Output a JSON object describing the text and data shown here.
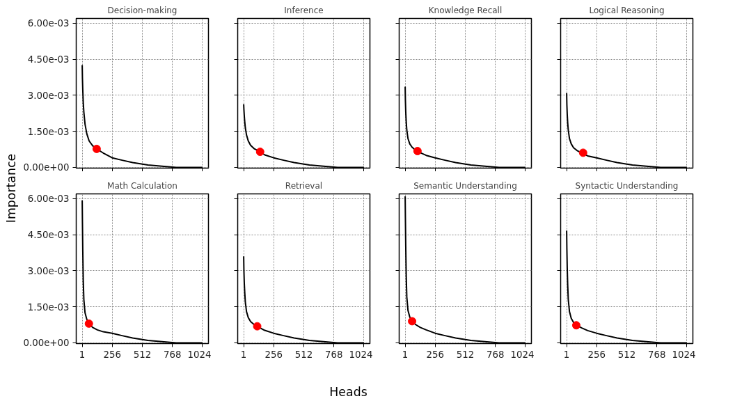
{
  "chart_data": [
    {
      "type": "line",
      "title": "Decision-making",
      "tick_labels": "y",
      "grid": true,
      "xlim": [
        -50,
        1075
      ],
      "ylim": [
        -3e-05,
        0.0062
      ],
      "xticks": [
        1,
        256,
        512,
        768,
        1024
      ],
      "yticks": [
        {
          "value": 0,
          "label": "0.00e+00"
        },
        {
          "value": 0.0015,
          "label": "1.50e-03"
        },
        {
          "value": 0.003,
          "label": "3.00e-03"
        },
        {
          "value": 0.0045,
          "label": "4.50e-03"
        },
        {
          "value": 0.006,
          "label": "6.00e-03"
        }
      ],
      "series": [
        {
          "color": "#000000",
          "x": [
            1,
            3,
            6,
            10,
            15,
            25,
            40,
            60,
            90,
            130,
            180,
            256,
            340,
            430,
            560,
            800,
            1024
          ],
          "values": [
            0.00426,
            0.0037,
            0.0032,
            0.0027,
            0.0023,
            0.0018,
            0.0014,
            0.0011,
            0.0009,
            0.00075,
            0.0006,
            0.0004,
            0.0003,
            0.0002,
            0.0001,
            0.0,
            0.0
          ]
        },
        {
          "type": "scatter",
          "color": "#ff0000",
          "x": [
            124
          ],
          "values": [
            0.00077
          ]
        }
      ]
    },
    {
      "type": "line",
      "title": "Inference",
      "tick_labels": false,
      "grid": true,
      "xlim": [
        -50,
        1075
      ],
      "ylim": [
        -3e-05,
        0.0062
      ],
      "xticks": [
        1,
        256,
        512,
        768,
        1024
      ],
      "yticks": [
        0,
        0.0015,
        0.003,
        0.0045,
        0.006
      ],
      "series": [
        {
          "color": "#000000",
          "x": [
            1,
            3,
            6,
            10,
            15,
            25,
            40,
            60,
            90,
            130,
            180,
            256,
            340,
            430,
            560,
            800,
            1024
          ],
          "values": [
            0.00263,
            0.0024,
            0.00215,
            0.0019,
            0.00165,
            0.00135,
            0.0011,
            0.00092,
            0.00078,
            0.00068,
            0.00052,
            0.0004,
            0.0003,
            0.0002,
            0.0001,
            0.0,
            0.0
          ]
        },
        {
          "type": "scatter",
          "color": "#ff0000",
          "x": [
            141
          ],
          "values": [
            0.00065
          ]
        }
      ]
    },
    {
      "type": "line",
      "title": "Knowledge Recall",
      "tick_labels": false,
      "grid": true,
      "xlim": [
        -50,
        1075
      ],
      "ylim": [
        -3e-05,
        0.0062
      ],
      "xticks": [
        1,
        256,
        512,
        768,
        1024
      ],
      "yticks": [
        0,
        0.0015,
        0.003,
        0.0045,
        0.006
      ],
      "series": [
        {
          "color": "#000000",
          "x": [
            1,
            3,
            6,
            10,
            15,
            25,
            40,
            60,
            90,
            130,
            180,
            256,
            340,
            430,
            560,
            800,
            1024
          ],
          "values": [
            0.00336,
            0.0028,
            0.0023,
            0.0019,
            0.00155,
            0.0012,
            0.00098,
            0.00084,
            0.00072,
            0.00061,
            0.0005,
            0.0004,
            0.0003,
            0.0002,
            0.0001,
            0.0,
            0.0
          ]
        },
        {
          "type": "scatter",
          "color": "#ff0000",
          "x": [
            106
          ],
          "values": [
            0.00068
          ]
        }
      ]
    },
    {
      "type": "line",
      "title": "Logical Reasoning",
      "tick_labels": false,
      "grid": true,
      "xlim": [
        -50,
        1075
      ],
      "ylim": [
        -3e-05,
        0.0062
      ],
      "xticks": [
        1,
        256,
        512,
        768,
        1024
      ],
      "yticks": [
        0,
        0.0015,
        0.003,
        0.0045,
        0.006
      ],
      "series": [
        {
          "color": "#000000",
          "x": [
            1,
            3,
            6,
            10,
            15,
            25,
            40,
            60,
            90,
            180,
            256,
            340,
            430,
            560,
            800,
            1024
          ],
          "values": [
            0.00309,
            0.0026,
            0.0022,
            0.00185,
            0.00155,
            0.0012,
            0.00098,
            0.00082,
            0.0007,
            0.00048,
            0.0004,
            0.0003,
            0.0002,
            0.0001,
            0.0,
            0.0
          ]
        },
        {
          "type": "scatter",
          "color": "#ff0000",
          "x": [
            141
          ],
          "values": [
            0.00061
          ]
        }
      ]
    },
    {
      "type": "line",
      "title": "Math Calculation",
      "ylabel": "Importance",
      "grid": true,
      "xlim": [
        -50,
        1075
      ],
      "ylim": [
        -3e-05,
        0.0062
      ],
      "xticks": [
        1,
        256,
        512,
        768,
        1024
      ],
      "yticks": [
        {
          "value": 0,
          "label": "0.00e+00"
        },
        {
          "value": 0.0015,
          "label": "1.50e-03"
        },
        {
          "value": 0.003,
          "label": "3.00e-03"
        },
        {
          "value": 0.0045,
          "label": "4.50e-03"
        },
        {
          "value": 0.006,
          "label": "6.00e-03"
        }
      ],
      "series": [
        {
          "color": "#000000",
          "x": [
            1,
            3,
            6,
            10,
            15,
            25,
            40,
            60,
            90,
            130,
            180,
            256,
            340,
            430,
            560,
            800,
            1024
          ],
          "values": [
            0.00593,
            0.005,
            0.0038,
            0.0026,
            0.0018,
            0.00125,
            0.00098,
            0.00078,
            0.00064,
            0.00054,
            0.00046,
            0.0004,
            0.0003,
            0.0002,
            0.0001,
            0.0,
            0.0
          ]
        },
        {
          "type": "scatter",
          "color": "#ff0000",
          "x": [
            58
          ],
          "values": [
            0.0008
          ]
        }
      ]
    },
    {
      "type": "line",
      "title": "Retrieval",
      "xlabel": "Heads",
      "tick_labels": "x",
      "grid": true,
      "xlim": [
        -50,
        1075
      ],
      "ylim": [
        -3e-05,
        0.0062
      ],
      "xticks": [
        1,
        256,
        512,
        768,
        1024
      ],
      "yticks": [
        0,
        0.0015,
        0.003,
        0.0045,
        0.006
      ],
      "series": [
        {
          "color": "#000000",
          "x": [
            1,
            3,
            6,
            10,
            15,
            25,
            40,
            60,
            90,
            130,
            180,
            256,
            340,
            430,
            560,
            800,
            1024
          ],
          "values": [
            0.0036,
            0.003,
            0.0025,
            0.0021,
            0.0017,
            0.0013,
            0.00105,
            0.00088,
            0.00076,
            0.00065,
            0.00052,
            0.0004,
            0.0003,
            0.0002,
            0.0001,
            0.0,
            0.0
          ]
        },
        {
          "type": "scatter",
          "color": "#ff0000",
          "x": [
            116
          ],
          "values": [
            0.00069
          ]
        }
      ]
    },
    {
      "type": "line",
      "title": "Semantic Understanding",
      "tick_labels": "x",
      "grid": true,
      "xlim": [
        -50,
        1075
      ],
      "ylim": [
        -3e-05,
        0.0062
      ],
      "xticks": [
        1,
        256,
        512,
        768,
        1024
      ],
      "yticks": [
        0,
        0.0015,
        0.003,
        0.0045,
        0.006
      ],
      "series": [
        {
          "color": "#000000",
          "x": [
            1,
            3,
            6,
            10,
            15,
            25,
            40,
            60,
            90,
            130,
            180,
            256,
            340,
            430,
            560,
            800,
            1024
          ],
          "values": [
            0.0061,
            0.0052,
            0.004,
            0.0028,
            0.0019,
            0.00135,
            0.00108,
            0.0009,
            0.00076,
            0.00064,
            0.00054,
            0.0004,
            0.0003,
            0.0002,
            0.0001,
            0.0,
            0.0
          ]
        },
        {
          "type": "scatter",
          "color": "#ff0000",
          "x": [
            60
          ],
          "values": [
            0.0009
          ]
        }
      ]
    },
    {
      "type": "line",
      "title": "Syntactic Understanding",
      "tick_labels": "x",
      "grid": true,
      "xlim": [
        -50,
        1075
      ],
      "ylim": [
        -3e-05,
        0.0062
      ],
      "xticks": [
        1,
        256,
        512,
        768,
        1024
      ],
      "yticks": [
        0,
        0.0015,
        0.003,
        0.0045,
        0.006
      ],
      "series": [
        {
          "color": "#000000",
          "x": [
            1,
            3,
            6,
            10,
            15,
            25,
            40,
            60,
            90,
            130,
            180,
            256,
            340,
            430,
            560,
            800,
            1024
          ],
          "values": [
            0.00467,
            0.0039,
            0.0031,
            0.0024,
            0.0018,
            0.0013,
            0.00102,
            0.00085,
            0.00072,
            0.00062,
            0.00051,
            0.0004,
            0.0003,
            0.0002,
            0.0001,
            0.0,
            0.0
          ]
        },
        {
          "type": "scatter",
          "color": "#ff0000",
          "x": [
            83
          ],
          "values": [
            0.00073
          ]
        }
      ]
    }
  ]
}
